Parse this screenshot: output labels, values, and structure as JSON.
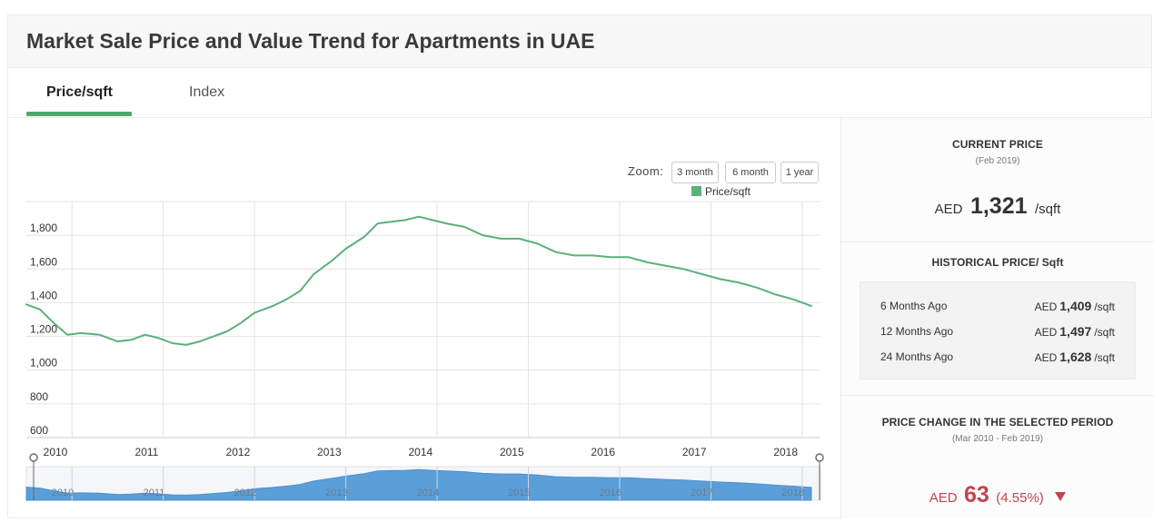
{
  "title": "Market Sale Price and Value Trend for Apartments in UAE",
  "tabs": [
    {
      "label": "Price/sqft",
      "active": true
    },
    {
      "label": "Index",
      "active": false
    }
  ],
  "zoom": {
    "label": "Zoom:",
    "buttons": [
      "3 month",
      "6 month",
      "1 year"
    ]
  },
  "colors": {
    "line": "#5bb07b",
    "legend": "#5bb07b",
    "navigator_fill": "#5a9fd8",
    "tab_underline": "#4caa6e",
    "negative": "#c0454d"
  },
  "chart_data": {
    "type": "line",
    "legend_position": "top-right",
    "grid": true,
    "series": [
      {
        "name": "Price/sqft",
        "x": [
          2010.0,
          2010.15,
          2010.3,
          2010.45,
          2010.6,
          2010.8,
          2011.0,
          2011.15,
          2011.3,
          2011.45,
          2011.6,
          2011.75,
          2011.9,
          2012.05,
          2012.2,
          2012.35,
          2012.5,
          2012.7,
          2012.85,
          2013.0,
          2013.15,
          2013.35,
          2013.5,
          2013.7,
          2013.85,
          2014.0,
          2014.15,
          2014.3,
          2014.45,
          2014.6,
          2014.8,
          2015.0,
          2015.2,
          2015.4,
          2015.6,
          2015.8,
          2016.0,
          2016.2,
          2016.4,
          2016.6,
          2016.8,
          2017.0,
          2017.2,
          2017.4,
          2017.6,
          2017.8,
          2018.0,
          2018.2,
          2018.4,
          2018.6
        ],
        "y": [
          1390,
          1360,
          1280,
          1210,
          1220,
          1210,
          1170,
          1180,
          1210,
          1190,
          1160,
          1150,
          1170,
          1200,
          1230,
          1280,
          1340,
          1380,
          1420,
          1470,
          1570,
          1650,
          1720,
          1790,
          1870,
          1880,
          1890,
          1910,
          1890,
          1870,
          1850,
          1800,
          1780,
          1780,
          1750,
          1700,
          1680,
          1680,
          1670,
          1670,
          1640,
          1620,
          1600,
          1570,
          1540,
          1520,
          1490,
          1450,
          1420,
          1380
        ]
      }
    ],
    "x_ticks": [
      "2010",
      "2011",
      "2012",
      "2013",
      "2014",
      "2015",
      "2016",
      "2017",
      "2018"
    ],
    "y_ticks": [
      "600",
      "800",
      "1,000",
      "1,200",
      "1,400",
      "1,600",
      "1,800"
    ],
    "xlim": [
      2010,
      2018.7
    ],
    "ylim": [
      600,
      2000
    ],
    "navigator_ticks": [
      "2010",
      "2011",
      "2012",
      "2013",
      "2014",
      "2015",
      "2016",
      "2017",
      "2018"
    ]
  },
  "current_price": {
    "title": "CURRENT PRICE",
    "date": "(Feb 2019)",
    "currency": "AED",
    "value": "1,321",
    "unit": "/sqft"
  },
  "historical": {
    "title": "HISTORICAL PRICE/ Sqft",
    "rows": [
      {
        "label": "6 Months Ago",
        "currency": "AED",
        "value": "1,409",
        "unit": "/sqft"
      },
      {
        "label": "12 Months Ago",
        "currency": "AED",
        "value": "1,497",
        "unit": "/sqft"
      },
      {
        "label": "24 Months Ago",
        "currency": "AED",
        "value": "1,628",
        "unit": "/sqft"
      }
    ]
  },
  "price_change": {
    "title": "PRICE CHANGE IN THE SELECTED PERIOD",
    "period": "(Mar 2010 - Feb 2019)",
    "currency": "AED",
    "value": "63",
    "percent": "(4.55%)",
    "direction": "down"
  }
}
